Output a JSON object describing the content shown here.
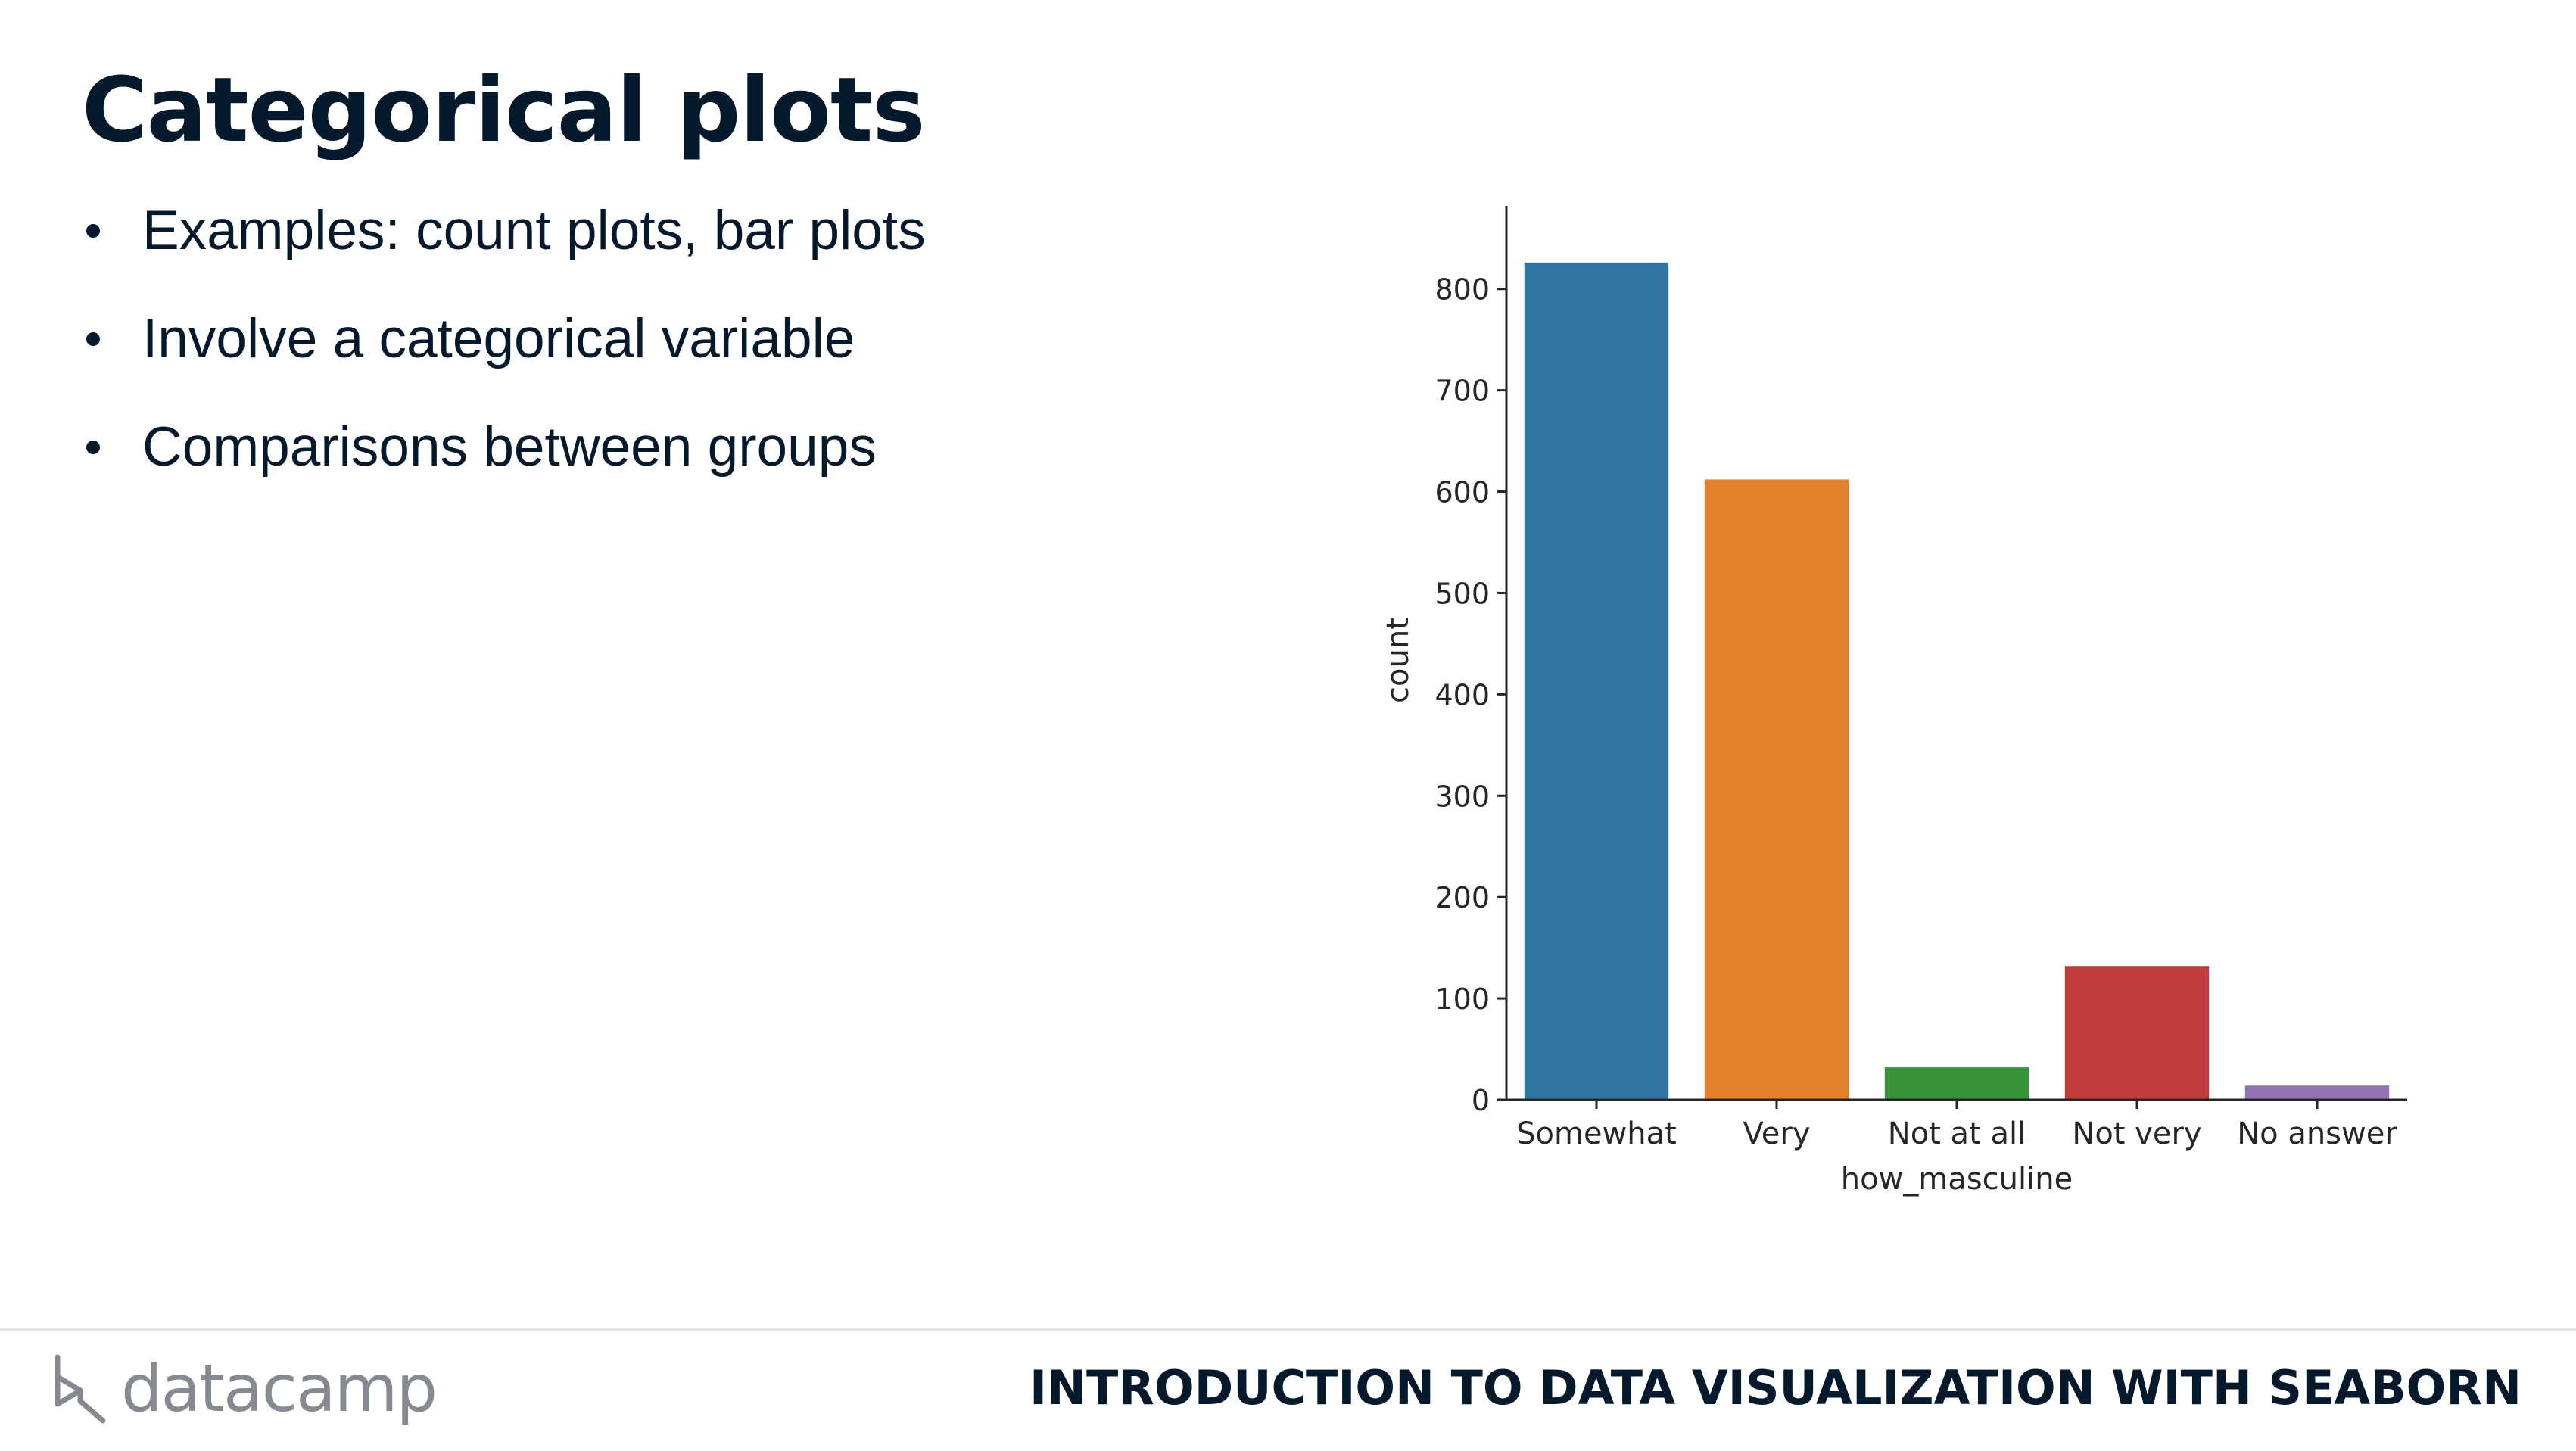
{
  "slide": {
    "title": "Categorical plots",
    "bullets": [
      "Examples: count plots, bar plots",
      "Involve a categorical variable",
      "Comparisons between groups"
    ]
  },
  "footer": {
    "logo_text": "datacamp",
    "logo_icon": "datacamp-logo-icon",
    "course_title": "INTRODUCTION TO DATA VISUALIZATION WITH SEABORN"
  },
  "chart_data": {
    "type": "bar",
    "categories": [
      "Somewhat",
      "Very",
      "Not at all",
      "Not very",
      "No answer"
    ],
    "values": [
      826,
      612,
      32,
      132,
      14
    ],
    "colors": [
      "#3274a1",
      "#e1812c",
      "#3a923a",
      "#c03d3e",
      "#9372b2"
    ],
    "xlabel": "how_masculine",
    "ylabel": "count",
    "yticks": [
      0,
      100,
      200,
      300,
      400,
      500,
      600,
      700,
      800
    ],
    "ylim": [
      0,
      867
    ],
    "grid": false
  }
}
